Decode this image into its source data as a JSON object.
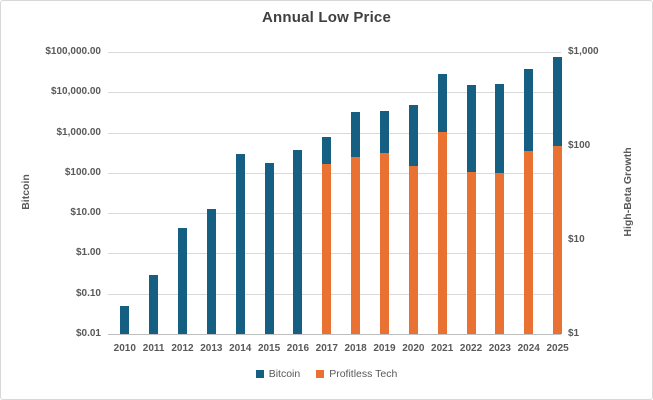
{
  "title": "Annual Low Price",
  "colors": {
    "bitcoin": "#156082",
    "profitless_tech": "#E97132",
    "gridline": "#d9d9d9",
    "axis_line": "#bfbfbf",
    "axis_text": "#595959",
    "title_text": "#404040"
  },
  "left_axis": {
    "title": "Bitcoin",
    "tick_labels": [
      "$100,000.00",
      "$10,000.00",
      "$1,000.00",
      "$100.00",
      "$10.00",
      "$1.00",
      "$0.10",
      "$0.01"
    ],
    "min": 0.01,
    "max": 100000,
    "scale": "log"
  },
  "right_axis": {
    "title": "High-Beta Growth",
    "tick_labels": [
      "$1,000",
      "$100",
      "$10",
      "$1"
    ],
    "min": 1,
    "max": 1000,
    "scale": "log"
  },
  "legend": [
    {
      "label": "Bitcoin",
      "color_key": "bitcoin"
    },
    {
      "label": "Profitless Tech",
      "color_key": "profitless_tech"
    }
  ],
  "chart_data": {
    "type": "bar",
    "title": "Annual Low Price",
    "categories": [
      "2010",
      "2011",
      "2012",
      "2013",
      "2014",
      "2015",
      "2016",
      "2017",
      "2018",
      "2019",
      "2020",
      "2021",
      "2022",
      "2023",
      "2024",
      "2025"
    ],
    "series": [
      {
        "name": "Bitcoin",
        "axis": "left",
        "color_key": "bitcoin",
        "values": [
          0.05,
          0.29,
          4.2,
          13,
          300,
          178,
          360,
          780,
          3200,
          3400,
          4900,
          28800,
          15500,
          16500,
          38500,
          75000
        ]
      },
      {
        "name": "Profitless Tech",
        "axis": "right",
        "color_key": "profitless_tech",
        "values": [
          null,
          null,
          null,
          null,
          null,
          null,
          null,
          65,
          77,
          84,
          61,
          140,
          53,
          51,
          88,
          100
        ]
      }
    ],
    "ylabel_left": "Bitcoin",
    "ylabel_right": "High-Beta Growth",
    "ylim_left": [
      0.01,
      100000
    ],
    "ylim_right": [
      1,
      1000
    ],
    "grid": true,
    "legend_position": "bottom"
  }
}
